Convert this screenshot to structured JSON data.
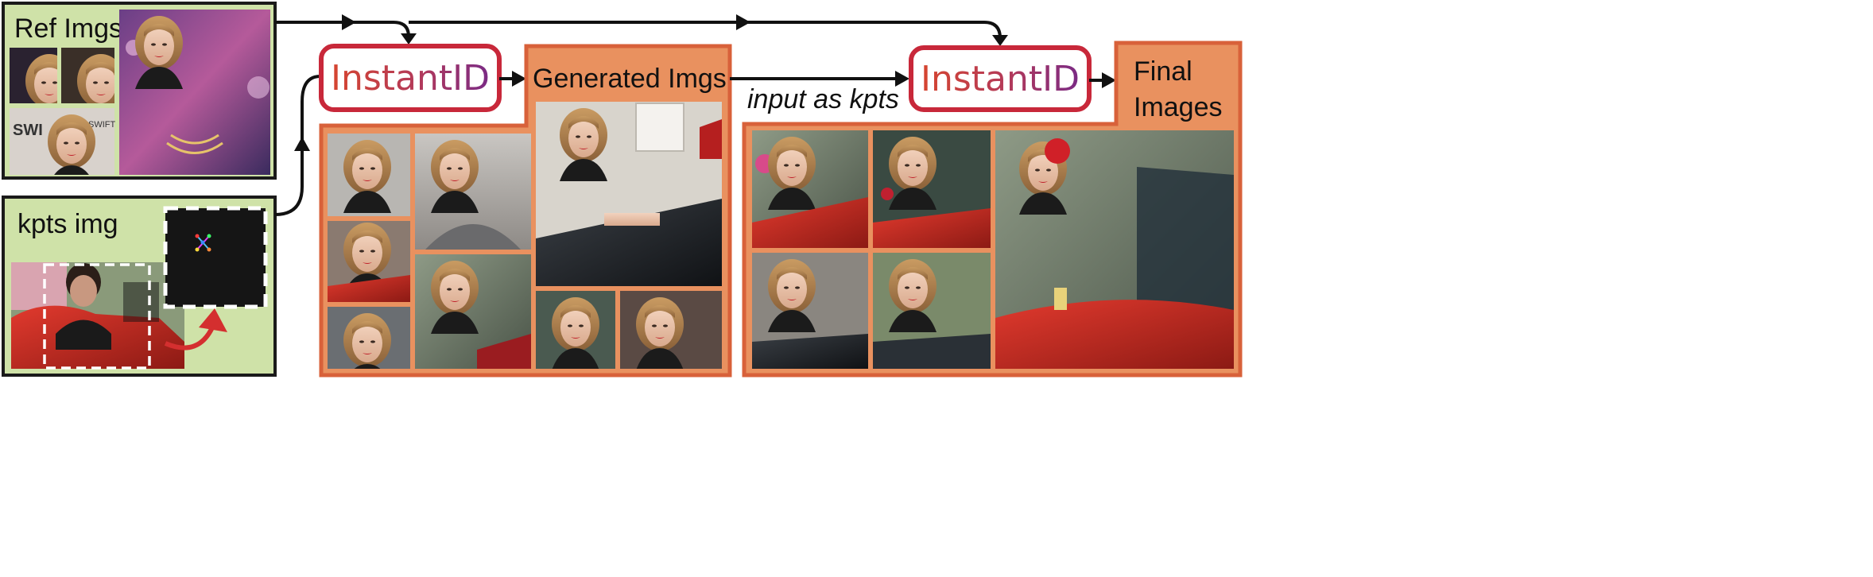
{
  "labels": {
    "ref_imgs": "Ref Imgs",
    "kpts_img": "kpts img",
    "instantid_1": "InstantID",
    "generated_imgs": "Generated Imgs",
    "input_as_kpts": "input as kpts",
    "instantid_2": "InstantID",
    "final_images_line1": "Final",
    "final_images_line2": "Images"
  },
  "photos": {
    "ref_main": "Taylor Swift red carpet close-up",
    "kpts_source": "man in red convertible car",
    "generated_large": "woman leaning on black car"
  },
  "colors": {
    "green_panel": "#cfe2a8",
    "orange_panel": "#e9915f",
    "orange_border": "#d8613a",
    "red_box": "#c8283a",
    "gradient_start": "#d6452f",
    "gradient_end": "#7a2a85",
    "arrow_red": "#d42f2f"
  }
}
